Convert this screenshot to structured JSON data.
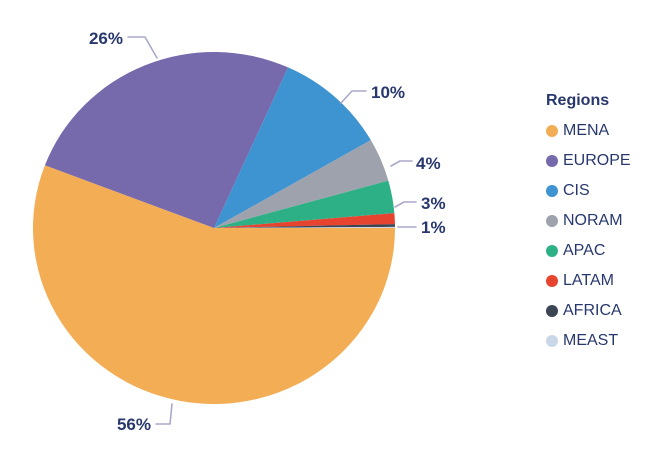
{
  "chart_data": {
    "type": "pie",
    "title": "",
    "legend": {
      "title": "Regions",
      "position": "right"
    },
    "direction": "clockwise",
    "start_angle_deg": 0,
    "slices": [
      {
        "label": "MENA",
        "value": 56,
        "display": "56%",
        "color": "#F3AD55"
      },
      {
        "label": "EUROPE",
        "value": 26,
        "display": "26%",
        "color": "#7669AC"
      },
      {
        "label": "CIS",
        "value": 10,
        "display": "10%",
        "color": "#3E93D1"
      },
      {
        "label": "NORAM",
        "value": 4,
        "display": "4%",
        "color": "#9DA2AC"
      },
      {
        "label": "APAC",
        "value": 3,
        "display": "3%",
        "color": "#2EB086"
      },
      {
        "label": "LATAM",
        "value": 1,
        "display": "1%",
        "color": "#E74430"
      },
      {
        "label": "AFRICA",
        "value": 0.25,
        "display": "",
        "color": "#3C4553"
      },
      {
        "label": "MEAST",
        "value": 0.1,
        "display": "",
        "color": "#C9D7E9"
      }
    ]
  },
  "colors": {
    "label_text": "#28386E",
    "leader_line": "#A9A9CA",
    "background": "#FFFFFF"
  }
}
